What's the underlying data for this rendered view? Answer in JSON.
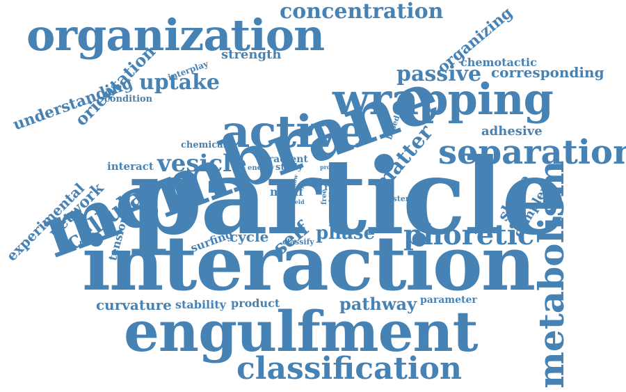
{
  "style": {
    "word_color": "#4682b4",
    "background": "#ffffff"
  },
  "words": {
    "particle": "particle",
    "interaction": "interaction",
    "membrane": "membrane",
    "engulfment": "engulfment",
    "organization": "organization",
    "wrapping": "wrapping",
    "active": "active",
    "separation": "separation",
    "metabolism": "metabolism",
    "classification": "classification",
    "phoretic": "phoretic",
    "concentration": "concentration",
    "cellular": "cellular",
    "vesicle": "vesicle",
    "uptake": "uptake",
    "passive": "passive",
    "matter": "matter",
    "phase": "phase",
    "self": "self",
    "pathway": "pathway",
    "corresponding": "corresponding",
    "curvature": "curvature",
    "orientation": "orientation",
    "organizing": "organizing",
    "understanding": "understanding",
    "experimental": "experimental",
    "network": "network",
    "shape": "shape",
    "complex": "complex",
    "adhesive": "adhesive",
    "chemotactic": "chemotactic",
    "strength": "strength",
    "cycle": "cycle",
    "tension": "tension",
    "surfing": "surfing",
    "stability": "stability",
    "product": "product",
    "parameter": "parameter",
    "condition": "condition",
    "interplay": "interplay",
    "chemical": "chemical",
    "interact": "interact",
    "gradient": "gradient",
    "energy": "energy",
    "study": "study",
    "based": "based",
    "proc": "proc",
    "motif": "motif",
    "role": "role",
    "free": "free",
    "full": "full",
    "case": "case",
    "system": "system",
    "result": "result",
    "field": "field",
    "classify": "classify",
    "flow": "flow"
  }
}
